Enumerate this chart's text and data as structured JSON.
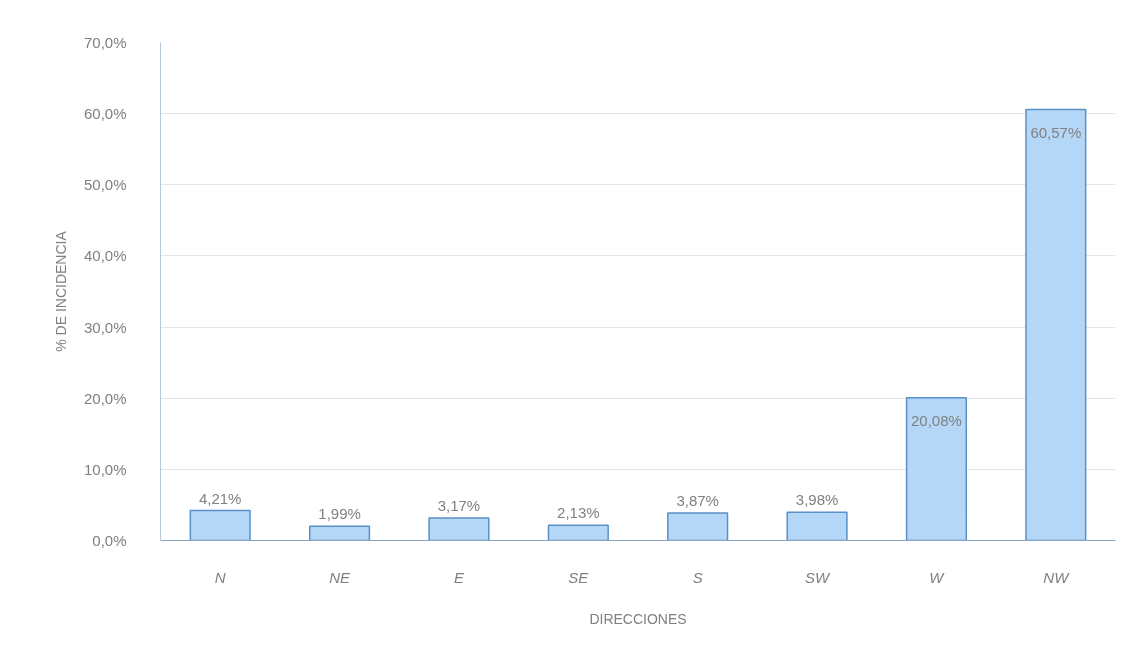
{
  "chart_data": {
    "type": "bar",
    "xlabel": "DIRECCIONES",
    "ylabel": "% DE INCIDENCIA",
    "categories": [
      "N",
      "NE",
      "E",
      "SE",
      "S",
      "SW",
      "W",
      "NW"
    ],
    "values": [
      4.21,
      1.99,
      3.17,
      2.13,
      3.87,
      3.98,
      20.08,
      60.57
    ],
    "value_labels": [
      "4,21%",
      "1,99%",
      "3,17%",
      "2,13%",
      "3,87%",
      "3,98%",
      "20,08%",
      "60,57%"
    ],
    "color": "#b4d7f7",
    "ylim": [
      0,
      70
    ],
    "yticks": [
      {
        "value": 0,
        "label": "0,0%"
      },
      {
        "value": 10,
        "label": "10,0%"
      },
      {
        "value": 20,
        "label": "20,0%"
      },
      {
        "value": 30,
        "label": "30,0%"
      },
      {
        "value": 40,
        "label": "40,0%"
      },
      {
        "value": 50,
        "label": "50,0%"
      },
      {
        "value": 60,
        "label": "60,0%"
      },
      {
        "value": 70,
        "label": "70,0%"
      }
    ],
    "grid": "y"
  }
}
